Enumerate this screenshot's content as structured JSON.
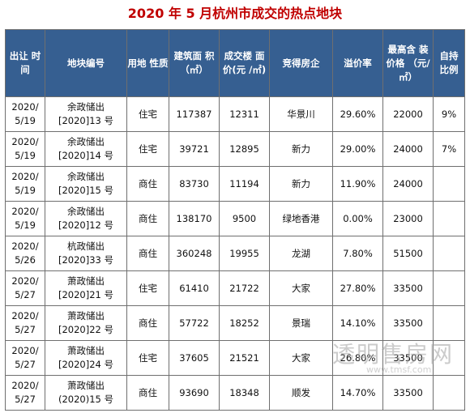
{
  "title": "2020 年 5 月杭州市成交的热点地块",
  "headers": [
    [
      "出让",
      "时间"
    ],
    [
      "地块编号"
    ],
    [
      "用地",
      "性质"
    ],
    [
      "建筑面",
      "积（㎡）"
    ],
    [
      "成交楼",
      "面价(元",
      "/㎡)"
    ],
    [
      "竞得房企"
    ],
    [
      "溢价率"
    ],
    [
      "最高含",
      "装价格",
      "（元/",
      "㎡）"
    ],
    [
      "自持",
      "比例"
    ]
  ],
  "rows": [
    {
      "date": [
        "2020/",
        "5/19"
      ],
      "plot": [
        "余政储出",
        "[2020]13 号"
      ],
      "use": "住宅",
      "area": "117387",
      "price": "12311",
      "company": "华景川",
      "premium": "29.60%",
      "max": "22000",
      "self": "9%"
    },
    {
      "date": [
        "2020/",
        "5/19"
      ],
      "plot": [
        "余政储出",
        "[2020]14 号"
      ],
      "use": "住宅",
      "area": "39721",
      "price": "12895",
      "company": "新力",
      "premium": "29.00%",
      "max": "24000",
      "self": "7%"
    },
    {
      "date": [
        "2020/",
        "5/19"
      ],
      "plot": [
        "余政储出",
        "[2020]15 号"
      ],
      "use": "商住",
      "area": "83730",
      "price": "11194",
      "company": "新力",
      "premium": "11.90%",
      "max": "24000",
      "self": ""
    },
    {
      "date": [
        "2020/",
        "5/19"
      ],
      "plot": [
        "余政储出",
        "[2020]12 号"
      ],
      "use": "商住",
      "area": "138170",
      "price": "9500",
      "company": "绿地香港",
      "premium": "0.00%",
      "max": "23000",
      "self": ""
    },
    {
      "date": [
        "2020/",
        "5/26"
      ],
      "plot": [
        "杭政储出",
        "[2020]33 号"
      ],
      "use": "商住",
      "area": "360248",
      "price": "19955",
      "company": "龙湖",
      "premium": "7.80%",
      "max": "51500",
      "self": ""
    },
    {
      "date": [
        "2020/",
        "5/27"
      ],
      "plot": [
        "萧政储出",
        "[2020]21 号"
      ],
      "use": "住宅",
      "area": "61410",
      "price": "21722",
      "company": "大家",
      "premium": "27.80%",
      "max": "33500",
      "self": ""
    },
    {
      "date": [
        "2020/",
        "5/27"
      ],
      "plot": [
        "萧政储出",
        "[2020]22 号"
      ],
      "use": "商住",
      "area": "57722",
      "price": "18252",
      "company": "景瑞",
      "premium": "14.10%",
      "max": "33500",
      "self": ""
    },
    {
      "date": [
        "2020/",
        "5/27"
      ],
      "plot": [
        "萧政储出",
        "[2020]24 号"
      ],
      "use": "住宅",
      "area": "37605",
      "price": "21521",
      "company": "大家",
      "premium": "26.80%",
      "max": "33500",
      "self": ""
    },
    {
      "date": [
        "2020/",
        "5/27"
      ],
      "plot": [
        "萧政储出",
        "(2020)15 号"
      ],
      "use": "商住",
      "area": "93690",
      "price": "18348",
      "company": "顺发",
      "premium": "14.70%",
      "max": "33500",
      "self": ""
    }
  ],
  "watermark": {
    "text": "透明售房网",
    "url": "www.tmsf.com"
  },
  "colors": {
    "title": "#c00000",
    "header_bg": "#365f91",
    "header_text": "#ffffff"
  }
}
